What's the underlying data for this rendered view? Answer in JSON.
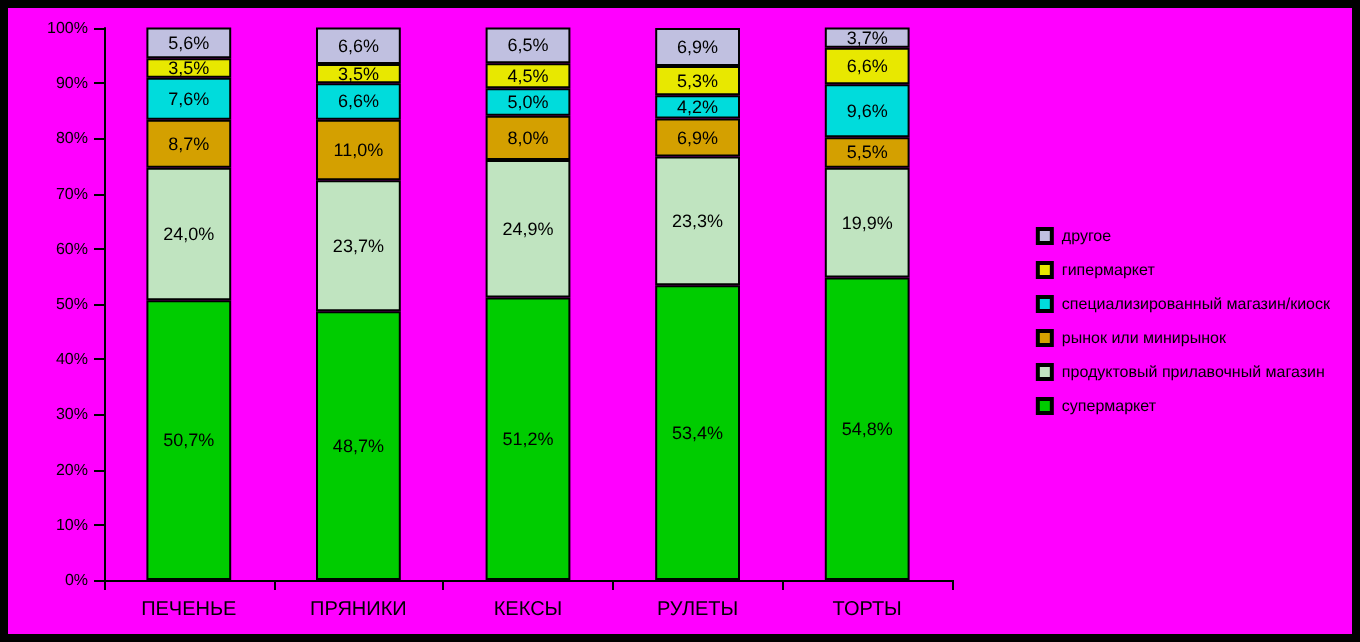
{
  "chart_data": {
    "type": "bar",
    "stacked": true,
    "categories": [
      "ПЕЧЕНЬЕ",
      "ПРЯНИКИ",
      "КЕКСЫ",
      "РУЛЕТЫ",
      "ТОРТЫ"
    ],
    "series": [
      {
        "name": "супермаркет",
        "color": "#00cc00",
        "values": [
          50.7,
          48.7,
          51.2,
          53.4,
          54.8
        ],
        "value_labels": [
          "50,7%",
          "48,7%",
          "51,2%",
          "53,4%",
          "54,8%"
        ]
      },
      {
        "name": "продуктовый прилавочный магазин",
        "color": "#c0e4c0",
        "values": [
          24.0,
          23.7,
          24.9,
          23.3,
          19.9
        ],
        "value_labels": [
          "24,0%",
          "23,7%",
          "24,9%",
          "23,3%",
          "19,9%"
        ]
      },
      {
        "name": "рынок или минирынок",
        "color": "#d4a000",
        "values": [
          8.7,
          11.0,
          8.0,
          6.9,
          5.5
        ],
        "value_labels": [
          "8,7%",
          "11,0%",
          "8,0%",
          "6,9%",
          "5,5%"
        ]
      },
      {
        "name": "специализированный магазин/киоск",
        "color": "#00dcdc",
        "values": [
          7.6,
          6.6,
          5.0,
          4.2,
          9.6
        ],
        "value_labels": [
          "7,6%",
          "6,6%",
          "5,0%",
          "4,2%",
          "9,6%"
        ]
      },
      {
        "name": "гипермаркет",
        "color": "#e8e800",
        "values": [
          3.5,
          3.5,
          4.5,
          5.3,
          6.6
        ],
        "value_labels": [
          "3,5%",
          "3,5%",
          "4,5%",
          "5,3%",
          "6,6%"
        ]
      },
      {
        "name": "другое",
        "color": "#c0c0e0",
        "values": [
          5.6,
          6.6,
          6.5,
          6.9,
          3.7
        ],
        "value_labels": [
          "5,6%",
          "6,6%",
          "6,5%",
          "6,9%",
          "3,7%"
        ]
      }
    ],
    "ylim": [
      0,
      100
    ],
    "yticks": [
      {
        "value": 0,
        "label": "0%"
      },
      {
        "value": 10,
        "label": "10%"
      },
      {
        "value": 20,
        "label": "20%"
      },
      {
        "value": 30,
        "label": "30%"
      },
      {
        "value": 40,
        "label": "40%"
      },
      {
        "value": 50,
        "label": "50%"
      },
      {
        "value": 60,
        "label": "60%"
      },
      {
        "value": 70,
        "label": "70%"
      },
      {
        "value": 80,
        "label": "80%"
      },
      {
        "value": 90,
        "label": "90%"
      },
      {
        "value": 100,
        "label": "100%"
      }
    ],
    "grid": false,
    "legend": "right"
  }
}
